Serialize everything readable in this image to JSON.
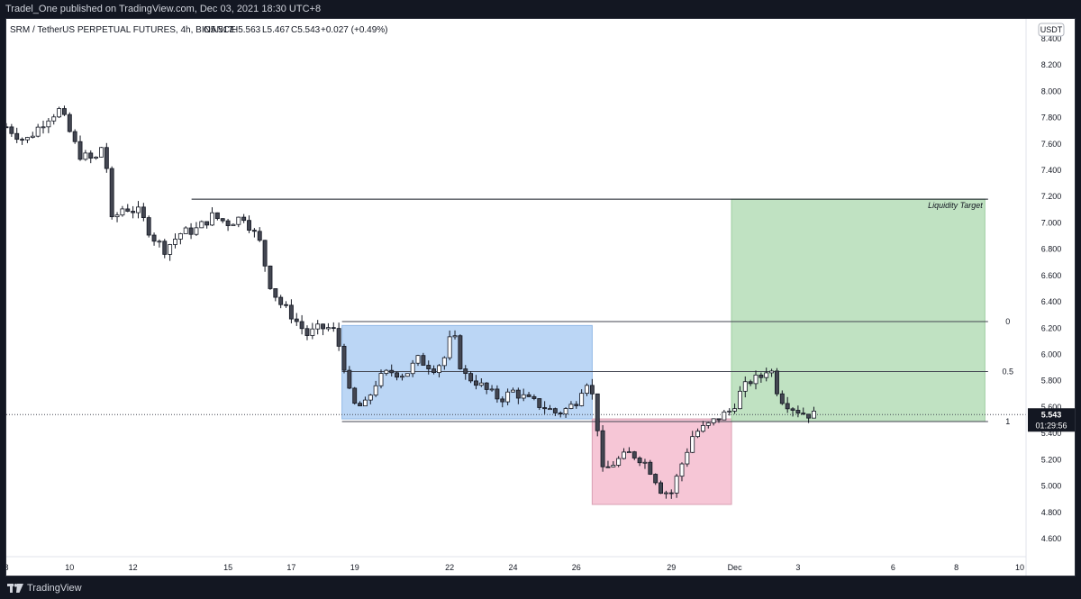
{
  "header": {
    "publisher": "Tradel_One published on TradingView.com, Dec 03, 2021 18:30 UTC+8"
  },
  "footer": {
    "brand": "TradingView"
  },
  "colors": {
    "up_candle": "#ffffff",
    "down_candle": "#434651",
    "blue_zone": "#bbd6f5",
    "pink_zone": "#f6c6d6",
    "green_zone": "#c0e2c2",
    "price_tag": "#131722"
  },
  "chart_data": {
    "type": "candlestick",
    "symbol_line": "SRM / TetherUS PERPETUAL FUTURES, 4h, BINANCE",
    "ohlc": {
      "open": "O5.517",
      "high": "H5.563",
      "low": "L5.467",
      "close": "C5.543",
      "change": "+0.027 (+0.49%)"
    },
    "currency_label": "USDT",
    "price_label": "5.543",
    "countdown_label": "01:29:56",
    "ylim": [
      4.47,
      8.55
    ],
    "y_ticks": [
      "8.400",
      "8.200",
      "8.000",
      "7.800",
      "7.600",
      "7.400",
      "7.200",
      "7.000",
      "6.800",
      "6.600",
      "6.400",
      "6.200",
      "6.000",
      "5.800",
      "5.600",
      "5.400",
      "5.200",
      "5.000",
      "4.800",
      "4.600"
    ],
    "x_ticks": [
      {
        "label": "8",
        "day": 8
      },
      {
        "label": "10",
        "day": 10
      },
      {
        "label": "12",
        "day": 12
      },
      {
        "label": "15",
        "day": 15
      },
      {
        "label": "17",
        "day": 17
      },
      {
        "label": "19",
        "day": 19
      },
      {
        "label": "22",
        "day": 22
      },
      {
        "label": "24",
        "day": 24
      },
      {
        "label": "26",
        "day": 26
      },
      {
        "label": "29",
        "day": 29
      },
      {
        "label": "Dec",
        "day": 31
      },
      {
        "label": "3",
        "day": 33
      },
      {
        "label": "6",
        "day": 36
      },
      {
        "label": "8",
        "day": 38
      },
      {
        "label": "10",
        "day": 40
      }
    ],
    "x_range_days": [
      8.0,
      40.2
    ],
    "last_candle_day": 33.5,
    "annotations": {
      "liquidity_line": {
        "price": 7.18,
        "from_day": 13.85,
        "to_day": 39.0
      },
      "liquidity_label": "Liquidity Target",
      "blue_range": {
        "from_day": 18.6,
        "to_day": 26.5,
        "low": 5.51,
        "high": 6.22
      },
      "pink_range": {
        "from_day": 26.5,
        "to_day": 30.9,
        "low": 4.86,
        "high": 5.51
      },
      "green_range": {
        "from_day": 30.9,
        "to_day": 38.9,
        "low": 5.49,
        "high": 7.18
      },
      "fib_levels": [
        {
          "label": "0",
          "price": 6.25
        },
        {
          "label": "0.5",
          "price": 5.87
        },
        {
          "label": "1",
          "price": 5.49
        }
      ],
      "fib_from_day": 18.6,
      "fib_to_day": 39.0
    },
    "waypoints": [
      [
        8.0,
        7.73
      ],
      [
        8.6,
        7.62
      ],
      [
        9.3,
        7.8
      ],
      [
        9.7,
        7.86
      ],
      [
        10.3,
        7.52
      ],
      [
        10.8,
        7.47
      ],
      [
        11.1,
        7.63
      ],
      [
        11.3,
        7.0
      ],
      [
        11.7,
        7.12
      ],
      [
        12.2,
        7.08
      ],
      [
        12.6,
        6.9
      ],
      [
        13.0,
        6.8
      ],
      [
        13.5,
        6.92
      ],
      [
        14.0,
        6.95
      ],
      [
        14.5,
        7.05
      ],
      [
        15.0,
        7.0
      ],
      [
        15.5,
        7.05
      ],
      [
        16.0,
        6.85
      ],
      [
        16.3,
        6.55
      ],
      [
        16.6,
        6.4
      ],
      [
        17.0,
        6.3
      ],
      [
        17.5,
        6.15
      ],
      [
        17.9,
        6.2
      ],
      [
        18.3,
        6.2
      ],
      [
        18.6,
        6.0
      ],
      [
        18.9,
        5.62
      ],
      [
        19.3,
        5.6
      ],
      [
        19.7,
        5.8
      ],
      [
        20.1,
        5.87
      ],
      [
        20.6,
        5.85
      ],
      [
        21.0,
        5.96
      ],
      [
        21.5,
        5.9
      ],
      [
        21.8,
        5.95
      ],
      [
        22.1,
        6.18
      ],
      [
        22.4,
        5.85
      ],
      [
        22.8,
        5.8
      ],
      [
        23.2,
        5.72
      ],
      [
        23.6,
        5.66
      ],
      [
        24.0,
        5.72
      ],
      [
        24.5,
        5.65
      ],
      [
        25.0,
        5.6
      ],
      [
        25.4,
        5.55
      ],
      [
        25.8,
        5.6
      ],
      [
        26.0,
        5.65
      ],
      [
        26.3,
        5.82
      ],
      [
        26.6,
        5.62
      ],
      [
        26.8,
        5.1
      ],
      [
        27.2,
        5.18
      ],
      [
        27.7,
        5.25
      ],
      [
        28.1,
        5.2
      ],
      [
        28.4,
        5.1
      ],
      [
        28.7,
        4.96
      ],
      [
        29.0,
        4.95
      ],
      [
        29.3,
        5.15
      ],
      [
        29.7,
        5.4
      ],
      [
        30.1,
        5.45
      ],
      [
        30.5,
        5.52
      ],
      [
        30.9,
        5.58
      ],
      [
        31.2,
        5.72
      ],
      [
        31.5,
        5.8
      ],
      [
        31.8,
        5.82
      ],
      [
        32.1,
        5.92
      ],
      [
        32.4,
        5.68
      ],
      [
        32.8,
        5.6
      ],
      [
        33.2,
        5.55
      ],
      [
        33.5,
        5.54
      ]
    ]
  }
}
